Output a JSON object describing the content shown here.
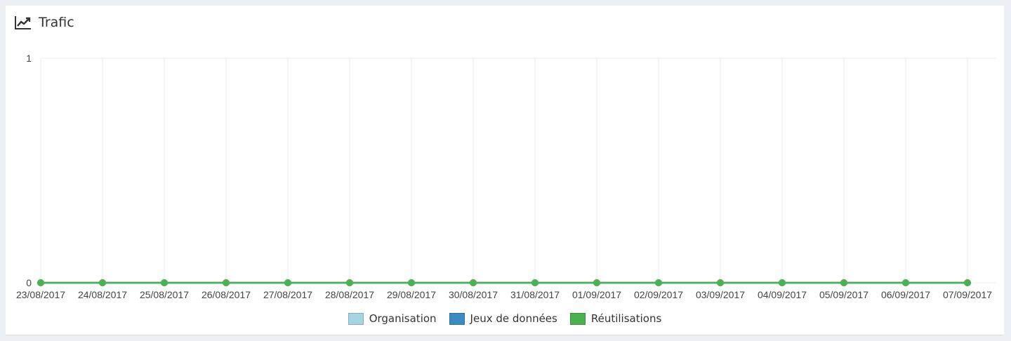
{
  "widget": {
    "title": "Trafic",
    "icon": "line-chart-icon"
  },
  "chart_data": {
    "type": "line",
    "title": "",
    "xlabel": "",
    "ylabel": "",
    "categories": [
      "23/08/2017",
      "24/08/2017",
      "25/08/2017",
      "26/08/2017",
      "27/08/2017",
      "28/08/2017",
      "29/08/2017",
      "30/08/2017",
      "31/08/2017",
      "01/09/2017",
      "02/09/2017",
      "03/09/2017",
      "04/09/2017",
      "05/09/2017",
      "06/09/2017",
      "07/09/2017"
    ],
    "ylim": [
      0,
      1
    ],
    "yticks": [
      "0",
      "1"
    ],
    "grid": true,
    "legend_position": "bottom",
    "series": [
      {
        "name": "Organisation",
        "color": "#a6d4e3",
        "values": [
          0,
          0,
          0,
          0,
          0,
          0,
          0,
          0,
          0,
          0,
          0,
          0,
          0,
          0,
          0,
          0
        ]
      },
      {
        "name": "Jeux de données",
        "color": "#3a8ac4",
        "values": [
          0,
          0,
          0,
          0,
          0,
          0,
          0,
          0,
          0,
          0,
          0,
          0,
          0,
          0,
          0,
          0
        ]
      },
      {
        "name": "Réutilisations",
        "color": "#4caf50",
        "values": [
          0,
          0,
          0,
          0,
          0,
          0,
          0,
          0,
          0,
          0,
          0,
          0,
          0,
          0,
          0,
          0
        ]
      }
    ]
  }
}
